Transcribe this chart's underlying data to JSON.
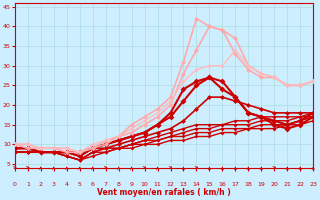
{
  "bg_color": "#cceeff",
  "grid_color": "#aadddd",
  "xlabel": "Vent moyen/en rafales ( km/h )",
  "xlabel_color": "#cc0000",
  "tick_color": "#cc0000",
  "x_ticks": [
    0,
    1,
    2,
    3,
    4,
    5,
    6,
    7,
    8,
    9,
    10,
    11,
    12,
    13,
    14,
    15,
    16,
    17,
    18,
    19,
    20,
    21,
    22,
    23
  ],
  "y_ticks": [
    5,
    10,
    15,
    20,
    25,
    30,
    35,
    40,
    45
  ],
  "xlim": [
    0,
    23
  ],
  "ylim": [
    4,
    46
  ],
  "lines": [
    {
      "x": [
        0,
        1,
        2,
        3,
        4,
        5,
        6,
        7,
        8,
        9,
        10,
        11,
        12,
        13,
        14,
        15,
        16,
        17,
        18,
        19,
        20,
        21,
        22,
        23
      ],
      "y": [
        8,
        8,
        8,
        8,
        7,
        6,
        7,
        8,
        9,
        9,
        10,
        10,
        11,
        11,
        12,
        12,
        13,
        13,
        14,
        14,
        14,
        15,
        15,
        16
      ],
      "color": "#cc0000",
      "lw": 1.0,
      "marker": "D",
      "ms": 2.0
    },
    {
      "x": [
        0,
        1,
        2,
        3,
        4,
        5,
        6,
        7,
        8,
        9,
        10,
        11,
        12,
        13,
        14,
        15,
        16,
        17,
        18,
        19,
        20,
        21,
        22,
        23
      ],
      "y": [
        8,
        8,
        8,
        8,
        7,
        6,
        8,
        8,
        9,
        10,
        10,
        11,
        12,
        12,
        13,
        13,
        14,
        14,
        14,
        15,
        15,
        15,
        16,
        17
      ],
      "color": "#cc0000",
      "lw": 1.0,
      "marker": "D",
      "ms": 2.0
    },
    {
      "x": [
        0,
        1,
        2,
        3,
        4,
        5,
        6,
        7,
        8,
        9,
        10,
        11,
        12,
        13,
        14,
        15,
        16,
        17,
        18,
        19,
        20,
        21,
        22,
        23
      ],
      "y": [
        8,
        8,
        8,
        8,
        7,
        6,
        8,
        9,
        9,
        10,
        11,
        11,
        12,
        13,
        14,
        14,
        15,
        15,
        15,
        16,
        16,
        16,
        17,
        17
      ],
      "color": "#cc0000",
      "lw": 1.0,
      "marker": "D",
      "ms": 2.0
    },
    {
      "x": [
        0,
        1,
        2,
        3,
        4,
        5,
        6,
        7,
        8,
        9,
        10,
        11,
        12,
        13,
        14,
        15,
        16,
        17,
        18,
        19,
        20,
        21,
        22,
        23
      ],
      "y": [
        8,
        8,
        8,
        8,
        7,
        6,
        8,
        9,
        9,
        10,
        11,
        12,
        13,
        14,
        15,
        15,
        15,
        16,
        16,
        17,
        17,
        17,
        17,
        18
      ],
      "color": "#cc0000",
      "lw": 1.0,
      "marker": "D",
      "ms": 2.0
    },
    {
      "x": [
        0,
        1,
        2,
        3,
        4,
        5,
        6,
        7,
        8,
        9,
        10,
        11,
        12,
        13,
        14,
        15,
        16,
        17,
        18,
        19,
        20,
        21,
        22,
        23
      ],
      "y": [
        8,
        8,
        8,
        8,
        8,
        7,
        9,
        9,
        10,
        11,
        12,
        13,
        14,
        16,
        19,
        22,
        22,
        21,
        20,
        19,
        18,
        18,
        18,
        18
      ],
      "color": "#cc0000",
      "lw": 1.2,
      "marker": "D",
      "ms": 2.5
    },
    {
      "x": [
        0,
        1,
        2,
        3,
        4,
        5,
        6,
        7,
        8,
        9,
        10,
        11,
        12,
        13,
        14,
        15,
        16,
        17,
        18,
        19,
        20,
        21,
        22,
        23
      ],
      "y": [
        9,
        9,
        8,
        8,
        8,
        7,
        9,
        10,
        11,
        12,
        13,
        15,
        17,
        21,
        25,
        27,
        26,
        22,
        18,
        17,
        16,
        15,
        16,
        18
      ],
      "color": "#cc0000",
      "lw": 1.5,
      "marker": "D",
      "ms": 3.0
    },
    {
      "x": [
        0,
        1,
        2,
        3,
        4,
        5,
        6,
        7,
        8,
        9,
        10,
        11,
        12,
        13,
        14,
        15,
        16,
        17,
        18,
        19,
        20,
        21,
        22,
        23
      ],
      "y": [
        9,
        9,
        8,
        8,
        8,
        8,
        9,
        10,
        11,
        12,
        13,
        15,
        18,
        24,
        26,
        27,
        24,
        22,
        18,
        17,
        15,
        14,
        15,
        17
      ],
      "color": "#cc0000",
      "lw": 1.5,
      "marker": "D",
      "ms": 3.0
    },
    {
      "x": [
        0,
        1,
        2,
        3,
        4,
        5,
        6,
        7,
        8,
        9,
        10,
        11,
        12,
        13,
        14,
        15,
        16,
        17,
        18,
        19,
        20,
        21,
        22,
        23
      ],
      "y": [
        10,
        9,
        9,
        9,
        8,
        8,
        9,
        10,
        12,
        13,
        15,
        17,
        20,
        28,
        34,
        40,
        39,
        33,
        29,
        27,
        27,
        25,
        25,
        26
      ],
      "color": "#ffaaaa",
      "lw": 1.2,
      "marker": "D",
      "ms": 2.5
    },
    {
      "x": [
        0,
        1,
        2,
        3,
        4,
        5,
        6,
        7,
        8,
        9,
        10,
        11,
        12,
        13,
        14,
        15,
        16,
        17,
        18,
        19,
        20,
        21,
        22,
        23
      ],
      "y": [
        10,
        10,
        9,
        9,
        9,
        8,
        9,
        11,
        12,
        15,
        17,
        19,
        22,
        31,
        42,
        40,
        39,
        37,
        30,
        28,
        27,
        25,
        25,
        26
      ],
      "color": "#ffaaaa",
      "lw": 1.2,
      "marker": "D",
      "ms": 2.5
    },
    {
      "x": [
        0,
        1,
        2,
        3,
        4,
        5,
        6,
        7,
        8,
        9,
        10,
        11,
        12,
        13,
        14,
        15,
        16,
        17,
        18,
        19,
        20,
        21,
        22,
        23
      ],
      "y": [
        10,
        10,
        9,
        9,
        9,
        8,
        10,
        11,
        12,
        14,
        16,
        18,
        21,
        26,
        29,
        30,
        30,
        34,
        30,
        28,
        27,
        25,
        25,
        26
      ],
      "color": "#ffbbbb",
      "lw": 1.0,
      "marker": "D",
      "ms": 2.0
    }
  ],
  "arrow_angles": [
    45,
    45,
    90,
    90,
    90,
    90,
    90,
    45,
    90,
    90,
    45,
    90,
    45,
    90,
    45,
    90,
    90,
    90,
    90,
    90,
    45,
    90,
    90,
    90
  ]
}
